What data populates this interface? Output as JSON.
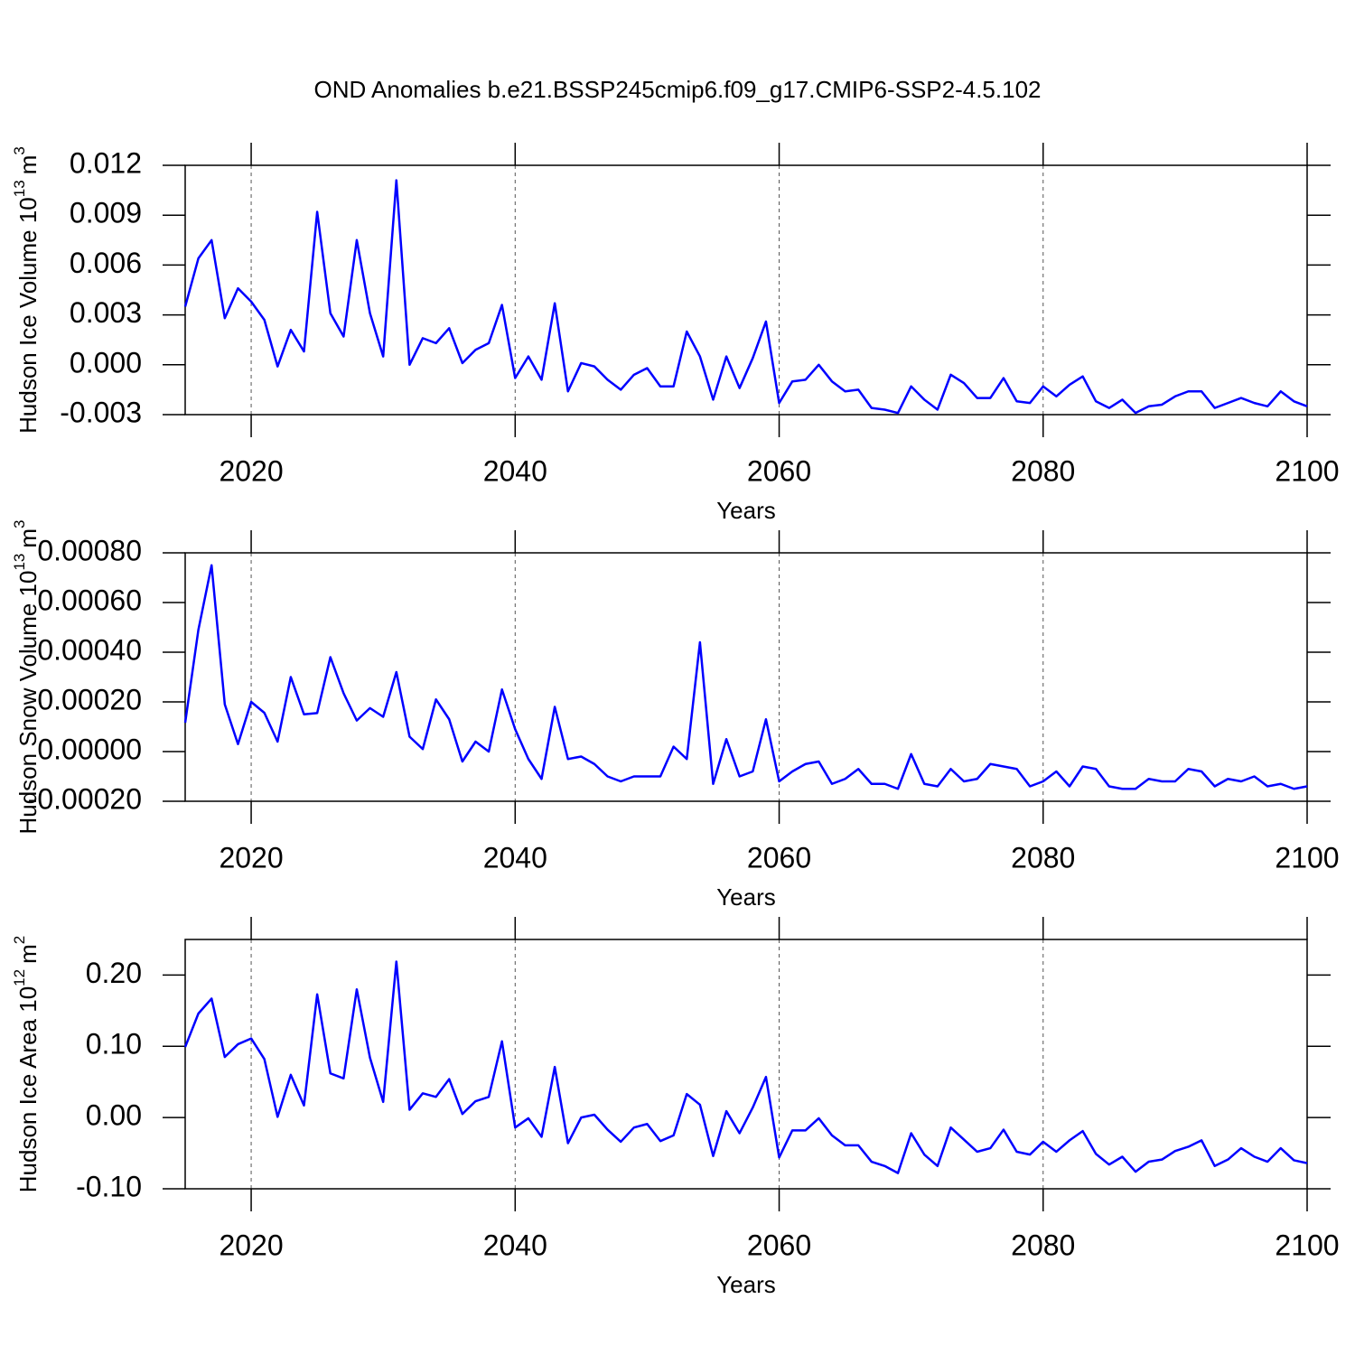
{
  "chart_data": [
    {
      "type": "line",
      "title": "OND Anomalies b.e21.BSSP245cmip6.f09_g17.CMIP6-SSP2-4.5.102",
      "xlabel": "Years",
      "ylabel_parts": [
        "Hudson Ice Volume 10",
        "13",
        "m",
        "3"
      ],
      "color": "#0000ff",
      "xlim": [
        2015,
        2100
      ],
      "xticks": [
        2020,
        2040,
        2060,
        2080,
        2100
      ],
      "ylim": [
        -0.003,
        0.012
      ],
      "yticks": [
        {
          "value": -0.003,
          "label": "-0.003"
        },
        {
          "value": 0,
          "label": "0.000"
        },
        0.003,
        0.006,
        0.009,
        0.012
      ],
      "x": [
        2015,
        2016,
        2017,
        2018,
        2019,
        2020,
        2021,
        2022,
        2023,
        2024,
        2025,
        2026,
        2027,
        2028,
        2029,
        2030,
        2031,
        2032,
        2033,
        2034,
        2035,
        2036,
        2037,
        2038,
        2039,
        2040,
        2041,
        2042,
        2043,
        2044,
        2045,
        2046,
        2047,
        2048,
        2049,
        2050,
        2051,
        2052,
        2053,
        2054,
        2055,
        2056,
        2057,
        2058,
        2059,
        2060,
        2061,
        2062,
        2063,
        2064,
        2065,
        2066,
        2067,
        2068,
        2069,
        2070,
        2071,
        2072,
        2073,
        2074,
        2075,
        2076,
        2077,
        2078,
        2079,
        2080,
        2081,
        2082,
        2083,
        2084,
        2085,
        2086,
        2087,
        2088,
        2089,
        2090,
        2091,
        2092,
        2093,
        2094,
        2095,
        2096,
        2097,
        2098,
        2099,
        2100
      ],
      "values": [
        0.0035,
        0.0064,
        0.0075,
        0.0028,
        0.0046,
        0.0038,
        0.0027,
        -0.0001,
        0.0021,
        0.0008,
        0.0092,
        0.0031,
        0.0017,
        0.0075,
        0.0031,
        0.0005,
        0.0111,
        0.0,
        0.0016,
        0.0013,
        0.0022,
        0.0001,
        0.0009,
        0.0013,
        0.0036,
        -0.0008,
        0.0005,
        -0.0009,
        0.0037,
        -0.0016,
        0.0001,
        -0.0001,
        -0.0009,
        -0.0015,
        -0.0006,
        -0.0002,
        -0.0013,
        -0.0013,
        0.002,
        0.0005,
        -0.0021,
        0.0005,
        -0.0014,
        0.0004,
        0.0026,
        -0.0023,
        -0.001,
        -0.0009,
        0.0,
        -0.001,
        -0.0016,
        -0.0015,
        -0.0026,
        -0.0027,
        -0.0029,
        -0.0013,
        -0.0021,
        -0.0027,
        -0.0006,
        -0.0011,
        -0.002,
        -0.002,
        -0.0008,
        -0.0022,
        -0.0023,
        -0.0013,
        -0.0019,
        -0.0012,
        -0.0007,
        -0.0022,
        -0.0026,
        -0.0021,
        -0.0029,
        -0.0025,
        -0.0024,
        -0.0019,
        -0.0016,
        -0.0016,
        -0.0026,
        -0.0023,
        -0.002,
        -0.0023,
        -0.0025,
        -0.0016,
        -0.0022,
        -0.0025
      ]
    },
    {
      "type": "line",
      "xlabel": "Years",
      "ylabel_parts": [
        "Hudson Snow Volume 10",
        "13",
        "m",
        "3"
      ],
      "color": "#0000ff",
      "xlim": [
        2015,
        2100
      ],
      "xticks": [
        2020,
        2040,
        2060,
        2080,
        2100
      ],
      "ylim": [
        -0.0002,
        0.0008
      ],
      "yticks": [
        {
          "value": -0.0002,
          "label": "-0.00020"
        },
        {
          "value": 0,
          "label": "0.00000"
        },
        {
          "value": 0.0002,
          "label": "0.00020"
        },
        {
          "value": 0.0004,
          "label": "0.00040"
        },
        {
          "value": 0.0006,
          "label": "0.00060"
        },
        {
          "value": 0.0008,
          "label": "0.00080"
        }
      ],
      "x": [
        2015,
        2016,
        2017,
        2018,
        2019,
        2020,
        2021,
        2022,
        2023,
        2024,
        2025,
        2026,
        2027,
        2028,
        2029,
        2030,
        2031,
        2032,
        2033,
        2034,
        2035,
        2036,
        2037,
        2038,
        2039,
        2040,
        2041,
        2042,
        2043,
        2044,
        2045,
        2046,
        2047,
        2048,
        2049,
        2050,
        2051,
        2052,
        2053,
        2054,
        2055,
        2056,
        2057,
        2058,
        2059,
        2060,
        2061,
        2062,
        2063,
        2064,
        2065,
        2066,
        2067,
        2068,
        2069,
        2070,
        2071,
        2072,
        2073,
        2074,
        2075,
        2076,
        2077,
        2078,
        2079,
        2080,
        2081,
        2082,
        2083,
        2084,
        2085,
        2086,
        2087,
        2088,
        2089,
        2090,
        2091,
        2092,
        2093,
        2094,
        2095,
        2096,
        2097,
        2098,
        2099,
        2100
      ],
      "values": [
        0.000116,
        0.00049,
        0.00075,
        0.00019,
        3e-05,
        0.0002,
        0.000156,
        4e-05,
        0.0003,
        0.00015,
        0.000155,
        0.00038,
        0.000235,
        0.000125,
        0.000175,
        0.00014,
        0.00032,
        6e-05,
        1e-05,
        0.00021,
        0.00013,
        -4e-05,
        4e-05,
        0.0,
        0.00025,
        9e-05,
        -3e-05,
        -0.00011,
        0.00018,
        -3e-05,
        -2e-05,
        -5e-05,
        -0.0001,
        -0.00012,
        -0.0001,
        -0.0001,
        -0.0001,
        2e-05,
        -3e-05,
        0.00044,
        -0.00013,
        5e-05,
        -0.0001,
        -8e-05,
        0.00013,
        -0.00012,
        -8e-05,
        -5e-05,
        -4e-05,
        -0.00013,
        -0.00011,
        -7e-05,
        -0.00013,
        -0.00013,
        -0.00015,
        -1e-05,
        -0.00013,
        -0.00014,
        -7e-05,
        -0.00012,
        -0.00011,
        -5e-05,
        -6e-05,
        -7e-05,
        -0.00014,
        -0.00012,
        -8e-05,
        -0.00014,
        -6e-05,
        -7e-05,
        -0.00014,
        -0.00015,
        -0.00015,
        -0.00011,
        -0.00012,
        -0.00012,
        -7e-05,
        -8e-05,
        -0.00014,
        -0.00011,
        -0.00012,
        -0.0001,
        -0.00014,
        -0.00013,
        -0.00015,
        -0.00014
      ]
    },
    {
      "type": "line",
      "xlabel": "Years",
      "ylabel_parts": [
        "Hudson Ice Area 10",
        "12",
        "m",
        "2"
      ],
      "color": "#0000ff",
      "xlim": [
        2015,
        2100
      ],
      "xticks": [
        2020,
        2040,
        2060,
        2080,
        2100
      ],
      "ylim": [
        -0.1,
        0.25
      ],
      "yticks": [
        {
          "value": -0.1,
          "label": "-0.10"
        },
        {
          "value": 0,
          "label": "0.00"
        },
        {
          "value": 0.1,
          "label": "0.10"
        },
        {
          "value": 0.2,
          "label": "0.20"
        }
      ],
      "x": [
        2015,
        2016,
        2017,
        2018,
        2019,
        2020,
        2021,
        2022,
        2023,
        2024,
        2025,
        2026,
        2027,
        2028,
        2029,
        2030,
        2031,
        2032,
        2033,
        2034,
        2035,
        2036,
        2037,
        2038,
        2039,
        2040,
        2041,
        2042,
        2043,
        2044,
        2045,
        2046,
        2047,
        2048,
        2049,
        2050,
        2051,
        2052,
        2053,
        2054,
        2055,
        2056,
        2057,
        2058,
        2059,
        2060,
        2061,
        2062,
        2063,
        2064,
        2065,
        2066,
        2067,
        2068,
        2069,
        2070,
        2071,
        2072,
        2073,
        2074,
        2075,
        2076,
        2077,
        2078,
        2079,
        2080,
        2081,
        2082,
        2083,
        2084,
        2085,
        2086,
        2087,
        2088,
        2089,
        2090,
        2091,
        2092,
        2093,
        2094,
        2095,
        2096,
        2097,
        2098,
        2099,
        2100
      ],
      "values": [
        0.099,
        0.146,
        0.167,
        0.085,
        0.103,
        0.111,
        0.082,
        0.001,
        0.06,
        0.017,
        0.173,
        0.062,
        0.055,
        0.18,
        0.084,
        0.022,
        0.219,
        0.011,
        0.034,
        0.029,
        0.054,
        0.005,
        0.023,
        0.029,
        0.107,
        -0.014,
        -0.001,
        -0.027,
        0.071,
        -0.036,
        0.0,
        0.004,
        -0.017,
        -0.034,
        -0.014,
        -0.009,
        -0.033,
        -0.025,
        0.033,
        0.018,
        -0.054,
        0.009,
        -0.022,
        0.014,
        0.057,
        -0.056,
        -0.018,
        -0.018,
        -0.001,
        -0.025,
        -0.039,
        -0.039,
        -0.062,
        -0.068,
        -0.078,
        -0.022,
        -0.052,
        -0.068,
        -0.014,
        -0.031,
        -0.048,
        -0.043,
        -0.017,
        -0.048,
        -0.052,
        -0.034,
        -0.048,
        -0.032,
        -0.019,
        -0.051,
        -0.066,
        -0.055,
        -0.076,
        -0.062,
        -0.059,
        -0.047,
        -0.041,
        -0.032,
        -0.068,
        -0.059,
        -0.043,
        -0.055,
        -0.062,
        -0.043,
        -0.06,
        -0.064
      ]
    }
  ]
}
